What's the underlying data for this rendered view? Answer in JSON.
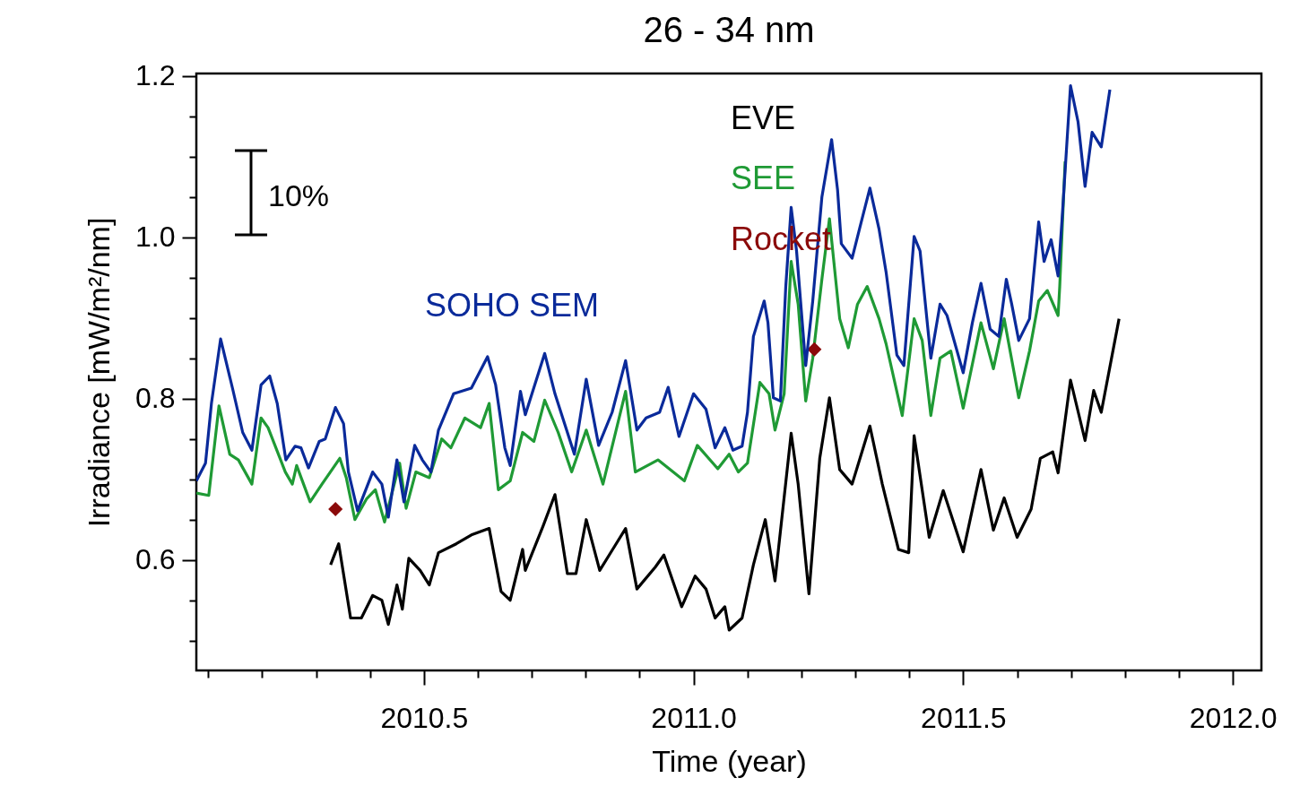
{
  "chart_data": {
    "type": "line",
    "title": "26 - 34 nm",
    "xlabel": "Time (year)",
    "ylabel": "Irradiance [mW/m²/nm]",
    "xlim": [
      2010.078,
      2012.053
    ],
    "ylim": [
      0.463,
      1.203
    ],
    "xticks": [
      {
        "value": 2010.1,
        "label": null
      },
      {
        "value": 2010.2,
        "label": null
      },
      {
        "value": 2010.3,
        "label": null
      },
      {
        "value": 2010.4,
        "label": null
      },
      2010.5,
      {
        "value": 2010.6,
        "label": null
      },
      {
        "value": 2010.7,
        "label": null
      },
      {
        "value": 2010.8,
        "label": null
      },
      {
        "value": 2010.9,
        "label": null
      },
      {
        "value": 2011,
        "label": "2011.0"
      },
      {
        "value": 2011.1,
        "label": null
      },
      {
        "value": 2011.2,
        "label": null
      },
      {
        "value": 2011.3,
        "label": null
      },
      {
        "value": 2011.4,
        "label": null
      },
      2011.5,
      {
        "value": 2011.6,
        "label": null
      },
      {
        "value": 2011.7,
        "label": null
      },
      {
        "value": 2011.8,
        "label": null
      },
      {
        "value": 2011.9,
        "label": null
      },
      {
        "value": 2012,
        "label": "2012.0"
      }
    ],
    "yticks": [
      {
        "value": 0.5,
        "label": null
      },
      {
        "value": 0.55,
        "label": null
      },
      0.6,
      {
        "value": 0.65,
        "label": null
      },
      {
        "value": 0.7,
        "label": null
      },
      {
        "value": 0.75,
        "label": null
      },
      0.8,
      {
        "value": 0.85,
        "label": null
      },
      {
        "value": 0.9,
        "label": null
      },
      {
        "value": 0.95,
        "label": null
      },
      {
        "value": 1,
        "label": "1.0"
      },
      {
        "value": 1.05,
        "label": null
      },
      {
        "value": 1.1,
        "label": null
      },
      {
        "value": 1.15,
        "label": null
      },
      1.2
    ],
    "annotations": [
      "10%"
    ],
    "series": [
      {
        "name": "EVE",
        "color": "#000000",
        "x": [
          2010.327,
          2010.342,
          2010.364,
          2010.384,
          2010.405,
          2010.422,
          2010.434,
          2010.45,
          2010.46,
          2010.472,
          2010.493,
          2010.51,
          2010.527,
          2010.56,
          2010.588,
          2010.621,
          2010.643,
          2010.66,
          2010.683,
          2010.688,
          2010.721,
          2010.743,
          2010.766,
          2010.782,
          2010.801,
          2010.826,
          2010.85,
          2010.874,
          2010.895,
          2010.929,
          2010.945,
          2010.978,
          2011.003,
          2011.023,
          2011.04,
          2011.058,
          2011.066,
          2011.09,
          2011.111,
          2011.133,
          2011.151,
          2011.181,
          2011.194,
          2011.214,
          2011.234,
          2011.252,
          2011.271,
          2011.294,
          2011.327,
          2011.35,
          2011.38,
          2011.399,
          2011.409,
          2011.437,
          2011.463,
          2011.5,
          2011.533,
          2011.556,
          2011.576,
          2011.6,
          2011.626,
          2011.643,
          2011.666,
          2011.676,
          2011.699,
          2011.726,
          2011.742,
          2011.756,
          2011.789
        ],
        "values": [
          0.594,
          0.62,
          0.528,
          0.528,
          0.556,
          0.55,
          0.52,
          0.569,
          0.539,
          0.602,
          0.587,
          0.569,
          0.609,
          0.62,
          0.631,
          0.639,
          0.561,
          0.55,
          0.613,
          0.587,
          0.642,
          0.681,
          0.583,
          0.583,
          0.65,
          0.587,
          0.613,
          0.639,
          0.564,
          0.591,
          0.606,
          0.542,
          0.58,
          0.564,
          0.528,
          0.542,
          0.513,
          0.528,
          0.594,
          0.65,
          0.574,
          0.757,
          0.694,
          0.558,
          0.726,
          0.801,
          0.712,
          0.694,
          0.766,
          0.694,
          0.613,
          0.609,
          0.754,
          0.628,
          0.686,
          0.61,
          0.712,
          0.637,
          0.677,
          0.628,
          0.663,
          0.726,
          0.734,
          0.708,
          0.823,
          0.748,
          0.81,
          0.783,
          0.899
        ]
      },
      {
        "name": "SEE",
        "color": "#1f9a35",
        "x": [
          2010.078,
          2010.101,
          2010.12,
          2010.14,
          2010.156,
          2010.181,
          2010.198,
          2010.211,
          2010.243,
          2010.256,
          2010.264,
          2010.289,
          2010.311,
          2010.344,
          2010.356,
          2010.372,
          2010.394,
          2010.41,
          2010.427,
          2010.455,
          2010.467,
          2010.485,
          2010.51,
          2010.533,
          2010.55,
          2010.576,
          2010.605,
          2010.621,
          2010.638,
          2010.66,
          2010.683,
          2010.704,
          2010.724,
          2010.749,
          2010.774,
          2010.801,
          2010.832,
          2010.874,
          2010.892,
          2010.934,
          2010.983,
          2011.007,
          2011.045,
          2011.066,
          2011.083,
          2011.1,
          2011.123,
          2011.14,
          2011.151,
          2011.168,
          2011.181,
          2011.194,
          2011.208,
          2011.221,
          2011.238,
          2011.252,
          2011.271,
          2011.287,
          2011.304,
          2011.322,
          2011.344,
          2011.357,
          2011.387,
          2011.409,
          2011.424,
          2011.44,
          2011.457,
          2011.477,
          2011.5,
          2011.533,
          2011.556,
          2011.576,
          2011.603,
          2011.623,
          2011.64,
          2011.656,
          2011.676,
          2011.679,
          2011.689
        ],
        "values": [
          0.683,
          0.68,
          0.791,
          0.731,
          0.724,
          0.694,
          0.776,
          0.764,
          0.709,
          0.694,
          0.717,
          0.672,
          0.694,
          0.726,
          0.702,
          0.65,
          0.676,
          0.687,
          0.647,
          0.72,
          0.664,
          0.709,
          0.702,
          0.75,
          0.739,
          0.776,
          0.764,
          0.794,
          0.687,
          0.698,
          0.758,
          0.747,
          0.798,
          0.758,
          0.709,
          0.761,
          0.694,
          0.809,
          0.709,
          0.724,
          0.698,
          0.742,
          0.713,
          0.731,
          0.709,
          0.72,
          0.82,
          0.806,
          0.761,
          0.806,
          0.97,
          0.917,
          0.797,
          0.85,
          0.948,
          1.023,
          0.899,
          0.863,
          0.917,
          0.939,
          0.899,
          0.868,
          0.779,
          0.899,
          0.872,
          0.779,
          0.85,
          0.859,
          0.788,
          0.894,
          0.837,
          0.899,
          0.801,
          0.859,
          0.921,
          0.934,
          0.903,
          0.939,
          1.094
        ]
      },
      {
        "name": "Rocket",
        "type": "scatter",
        "marker": "diamond",
        "color": "#8b0a0a",
        "x": [
          2010.336,
          2011.224
        ],
        "values": [
          0.663,
          0.861
        ]
      },
      {
        "name": "SOHO SEM",
        "color": "#0a2a9a",
        "x": [
          2010.078,
          2010.095,
          2010.106,
          2010.123,
          2010.145,
          2010.164,
          2010.181,
          2010.198,
          2010.214,
          2010.228,
          2010.244,
          2010.261,
          2010.272,
          2010.286,
          2010.306,
          2010.317,
          2010.336,
          2010.351,
          2010.36,
          2010.377,
          2010.405,
          2010.422,
          2010.434,
          2010.45,
          2010.463,
          2010.483,
          2010.497,
          2010.513,
          2010.527,
          2010.555,
          2010.588,
          2010.618,
          2010.633,
          2010.65,
          2010.66,
          2010.679,
          2010.688,
          2010.724,
          2010.743,
          2010.779,
          2010.801,
          2010.824,
          2010.849,
          2010.874,
          2010.895,
          2010.912,
          2010.937,
          2010.953,
          2010.973,
          2011,
          2011.023,
          2011.04,
          2011.058,
          2011.073,
          2011.09,
          2011.1,
          2011.111,
          2011.131,
          2011.138,
          2011.148,
          2011.161,
          2011.171,
          2011.181,
          2011.191,
          2011.208,
          2011.221,
          2011.238,
          2011.256,
          2011.267,
          2011.274,
          2011.294,
          2011.311,
          2011.327,
          2011.344,
          2011.357,
          2011.377,
          2011.39,
          2011.409,
          2011.42,
          2011.44,
          2011.457,
          2011.47,
          2011.5,
          2011.517,
          2011.533,
          2011.55,
          2011.566,
          2011.58,
          2011.59,
          2011.603,
          2011.623,
          2011.64,
          2011.65,
          2011.663,
          2011.676,
          2011.683,
          2011.699,
          2011.713,
          2011.726,
          2011.739,
          2011.756,
          2011.772
        ],
        "values": [
          0.698,
          0.72,
          0.794,
          0.874,
          0.813,
          0.758,
          0.736,
          0.817,
          0.828,
          0.794,
          0.724,
          0.741,
          0.739,
          0.714,
          0.747,
          0.75,
          0.789,
          0.769,
          0.709,
          0.661,
          0.709,
          0.694,
          0.653,
          0.724,
          0.672,
          0.742,
          0.724,
          0.709,
          0.761,
          0.806,
          0.813,
          0.852,
          0.817,
          0.739,
          0.717,
          0.809,
          0.78,
          0.856,
          0.806,
          0.731,
          0.824,
          0.742,
          0.783,
          0.847,
          0.761,
          0.776,
          0.783,
          0.814,
          0.753,
          0.806,
          0.787,
          0.739,
          0.764,
          0.736,
          0.741,
          0.783,
          0.877,
          0.921,
          0.894,
          0.801,
          0.797,
          0.939,
          1.037,
          0.983,
          0.841,
          0.921,
          1.05,
          1.121,
          1.059,
          0.992,
          0.974,
          1.019,
          1.061,
          1.01,
          0.957,
          0.854,
          0.841,
          1.001,
          0.983,
          0.85,
          0.917,
          0.903,
          0.832,
          0.894,
          0.943,
          0.886,
          0.877,
          0.948,
          0.917,
          0.872,
          0.899,
          1.019,
          0.97,
          0.997,
          0.952,
          1.019,
          1.188,
          1.143,
          1.063,
          1.13,
          1.112,
          1.183
        ]
      }
    ]
  }
}
